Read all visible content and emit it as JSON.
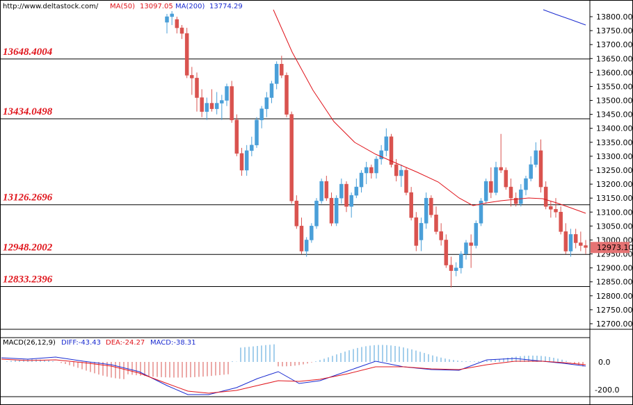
{
  "header": {
    "url": "http://www.deltastock.com/",
    "ma50_label": "MA(50)",
    "ma50_value": "13097.05",
    "ma200_label": "MA(200)",
    "ma200_value": "13774.29"
  },
  "colors": {
    "up": "#4a9fd8",
    "down": "#d9534f",
    "ma50": "#e0141b",
    "ma200": "#1a2bd0",
    "level_text": "#e0141b",
    "price_tag": "#e57373",
    "diff": "#1a2bd0",
    "dea": "#e0141b"
  },
  "chart_data": {
    "type": "candlestick",
    "price_axis": {
      "min": 12700,
      "max": 13800,
      "ticks": [
        "13800.00",
        "13750.00",
        "13700.00",
        "13650.00",
        "13600.00",
        "13550.00",
        "13500.00",
        "13450.00",
        "13400.00",
        "13350.00",
        "13300.00",
        "13250.00",
        "13200.00",
        "13150.00",
        "13100.00",
        "13050.00",
        "13000.00",
        "12950.00",
        "12900.00",
        "12850.00",
        "12800.00",
        "12750.00",
        "12700.00"
      ]
    },
    "levels": [
      {
        "label": "13648.4004",
        "value": 13648.4004
      },
      {
        "label": "13434.0498",
        "value": 13434.0498
      },
      {
        "label": "13126.2696",
        "value": 13126.2696
      },
      {
        "label": "12948.2002",
        "value": 12948.2002
      },
      {
        "label": "12833.2396",
        "value": 12833.2396
      }
    ],
    "last_price": "12973.10",
    "candles": [
      [
        13780,
        13810,
        13740,
        13800
      ],
      [
        13800,
        13820,
        13770,
        13810
      ],
      [
        13790,
        13800,
        13740,
        13760
      ],
      [
        13760,
        13770,
        13720,
        13740
      ],
      [
        13740,
        13760,
        13580,
        13590
      ],
      [
        13590,
        13620,
        13520,
        13580
      ],
      [
        13580,
        13600,
        13460,
        13510
      ],
      [
        13510,
        13540,
        13440,
        13460
      ],
      [
        13460,
        13510,
        13430,
        13490
      ],
      [
        13490,
        13540,
        13460,
        13470
      ],
      [
        13470,
        13530,
        13450,
        13490
      ],
      [
        13490,
        13520,
        13430,
        13500
      ],
      [
        13500,
        13560,
        13480,
        13550
      ],
      [
        13550,
        13570,
        13420,
        13430
      ],
      [
        13430,
        13450,
        13300,
        13310
      ],
      [
        13310,
        13330,
        13230,
        13250
      ],
      [
        13250,
        13340,
        13230,
        13320
      ],
      [
        13320,
        13370,
        13300,
        13340
      ],
      [
        13340,
        13440,
        13330,
        13430
      ],
      [
        13430,
        13480,
        13400,
        13470
      ],
      [
        13470,
        13530,
        13440,
        13510
      ],
      [
        13510,
        13570,
        13490,
        13560
      ],
      [
        13560,
        13640,
        13540,
        13630
      ],
      [
        13630,
        13660,
        13580,
        13590
      ],
      [
        13590,
        13600,
        13440,
        13450
      ],
      [
        13450,
        13460,
        13130,
        13140
      ],
      [
        13140,
        13160,
        13040,
        13050
      ],
      [
        13050,
        13080,
        12950,
        12960
      ],
      [
        12960,
        13010,
        12940,
        13000
      ],
      [
        13000,
        13060,
        12990,
        13050
      ],
      [
        13050,
        13150,
        13040,
        13140
      ],
      [
        13140,
        13220,
        13130,
        13210
      ],
      [
        13210,
        13230,
        13140,
        13150
      ],
      [
        13150,
        13170,
        13050,
        13060
      ],
      [
        13060,
        13160,
        13050,
        13150
      ],
      [
        13150,
        13220,
        13130,
        13200
      ],
      [
        13200,
        13210,
        13100,
        13120
      ],
      [
        13120,
        13170,
        13080,
        13160
      ],
      [
        13160,
        13220,
        13150,
        13190
      ],
      [
        13190,
        13250,
        13170,
        13240
      ],
      [
        13240,
        13280,
        13200,
        13260
      ],
      [
        13260,
        13270,
        13220,
        13240
      ],
      [
        13240,
        13300,
        13220,
        13290
      ],
      [
        13290,
        13340,
        13270,
        13320
      ],
      [
        13320,
        13400,
        13300,
        13370
      ],
      [
        13370,
        13380,
        13260,
        13270
      ],
      [
        13270,
        13290,
        13210,
        13230
      ],
      [
        13230,
        13270,
        13190,
        13250
      ],
      [
        13250,
        13260,
        13160,
        13170
      ],
      [
        13170,
        13190,
        13070,
        13080
      ],
      [
        13080,
        13100,
        12960,
        12980
      ],
      [
        13000,
        13080,
        12960,
        13060
      ],
      [
        13060,
        13170,
        13040,
        13150
      ],
      [
        13150,
        13160,
        13080,
        13090
      ],
      [
        13090,
        13120,
        13020,
        13030
      ],
      [
        13030,
        13060,
        12980,
        13000
      ],
      [
        13000,
        13020,
        12900,
        12910
      ],
      [
        12910,
        12940,
        12830,
        12890
      ],
      [
        12890,
        12920,
        12870,
        12900
      ],
      [
        12900,
        12960,
        12880,
        12950
      ],
      [
        12950,
        13000,
        12930,
        12990
      ],
      [
        12990,
        13020,
        12900,
        12980
      ],
      [
        12980,
        13070,
        12970,
        13060
      ],
      [
        13060,
        13150,
        13050,
        13140
      ],
      [
        13140,
        13220,
        13130,
        13210
      ],
      [
        13210,
        13260,
        13150,
        13170
      ],
      [
        13170,
        13280,
        13160,
        13260
      ],
      [
        13260,
        13380,
        13240,
        13250
      ],
      [
        13250,
        13260,
        13180,
        13190
      ],
      [
        13190,
        13220,
        13120,
        13150
      ],
      [
        13150,
        13170,
        13120,
        13130
      ],
      [
        13130,
        13200,
        13120,
        13180
      ],
      [
        13180,
        13230,
        13160,
        13220
      ],
      [
        13220,
        13300,
        13210,
        13270
      ],
      [
        13270,
        13350,
        13260,
        13320
      ],
      [
        13320,
        13360,
        13170,
        13190
      ],
      [
        13190,
        13210,
        13110,
        13120
      ],
      [
        13120,
        13140,
        13080,
        13110
      ],
      [
        13110,
        13150,
        13080,
        13100
      ],
      [
        13100,
        13120,
        13020,
        13030
      ],
      [
        13030,
        13060,
        12950,
        12960
      ],
      [
        12960,
        13040,
        12940,
        13020
      ],
      [
        13020,
        13040,
        12970,
        12990
      ],
      [
        12990,
        13030,
        12960,
        12980
      ],
      [
        12980,
        13000,
        12950,
        12973
      ]
    ],
    "ma50": [
      [
        0,
        13820
      ],
      [
        5,
        13700
      ],
      [
        10,
        13560
      ],
      [
        15,
        13420
      ],
      [
        20,
        13300
      ],
      [
        25,
        13250
      ],
      [
        30,
        13220
      ],
      [
        35,
        13180
      ],
      [
        40,
        13130
      ],
      [
        45,
        13125
      ],
      [
        50,
        13140
      ],
      [
        55,
        13140
      ],
      [
        60,
        13110
      ],
      [
        65,
        13097
      ]
    ],
    "ma200": [
      [
        0,
        13800
      ],
      [
        4,
        13780
      ],
      [
        8,
        13760
      ],
      [
        12,
        13740
      ],
      [
        15,
        13730
      ]
    ],
    "macd": {
      "label": "MACD(26,12,9)",
      "diff_label": "DIFF:-43.43",
      "dea_label": "DEA:-24.27",
      "macd_label": "MACD:-38.31",
      "axis_ticks": [
        "0.0",
        "-200.0"
      ]
    }
  }
}
